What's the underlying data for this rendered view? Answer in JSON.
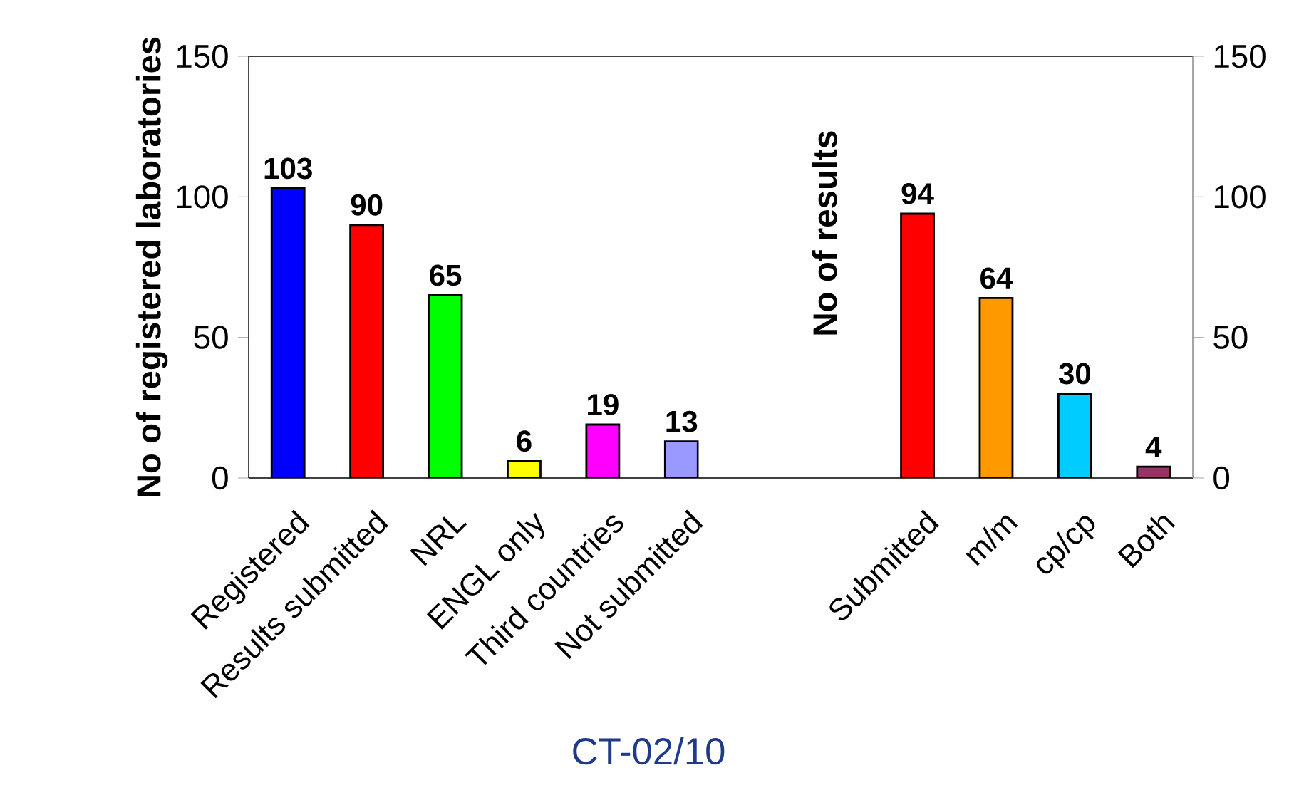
{
  "chart_data": {
    "type": "bar",
    "title": "CT-02/10",
    "ylabel": "No of registered laboratories",
    "y2label": "No of results",
    "categories": [
      "Registered",
      "Results submitted",
      "NRL",
      "ENGL only",
      "Third countries",
      "Not submitted",
      null,
      null,
      "Submitted",
      "m/m",
      "cp/cp",
      "Both"
    ],
    "series": [
      {
        "values": [
          103,
          90,
          65,
          6,
          19,
          13,
          null,
          null,
          null,
          null,
          null,
          null
        ],
        "colors": [
          "#0000ff",
          "#ff0000",
          "#00ff00",
          "#ffff00",
          "#ff00ff",
          "#9999ff",
          null,
          null,
          null,
          null,
          null,
          null
        ]
      },
      {
        "axis": "y2",
        "values": [
          null,
          null,
          null,
          null,
          null,
          null,
          null,
          null,
          94,
          64,
          30,
          4
        ],
        "colors": [
          null,
          null,
          null,
          null,
          null,
          null,
          null,
          null,
          "#ff0000",
          "#ff9900",
          "#00ccff",
          "#993366"
        ]
      }
    ],
    "ylim": [
      0,
      150
    ],
    "yticks": [
      0,
      50,
      100,
      150
    ],
    "y2lim": [
      0,
      150
    ],
    "y2ticks": [
      0,
      50,
      100,
      150
    ],
    "data_labels": true
  }
}
